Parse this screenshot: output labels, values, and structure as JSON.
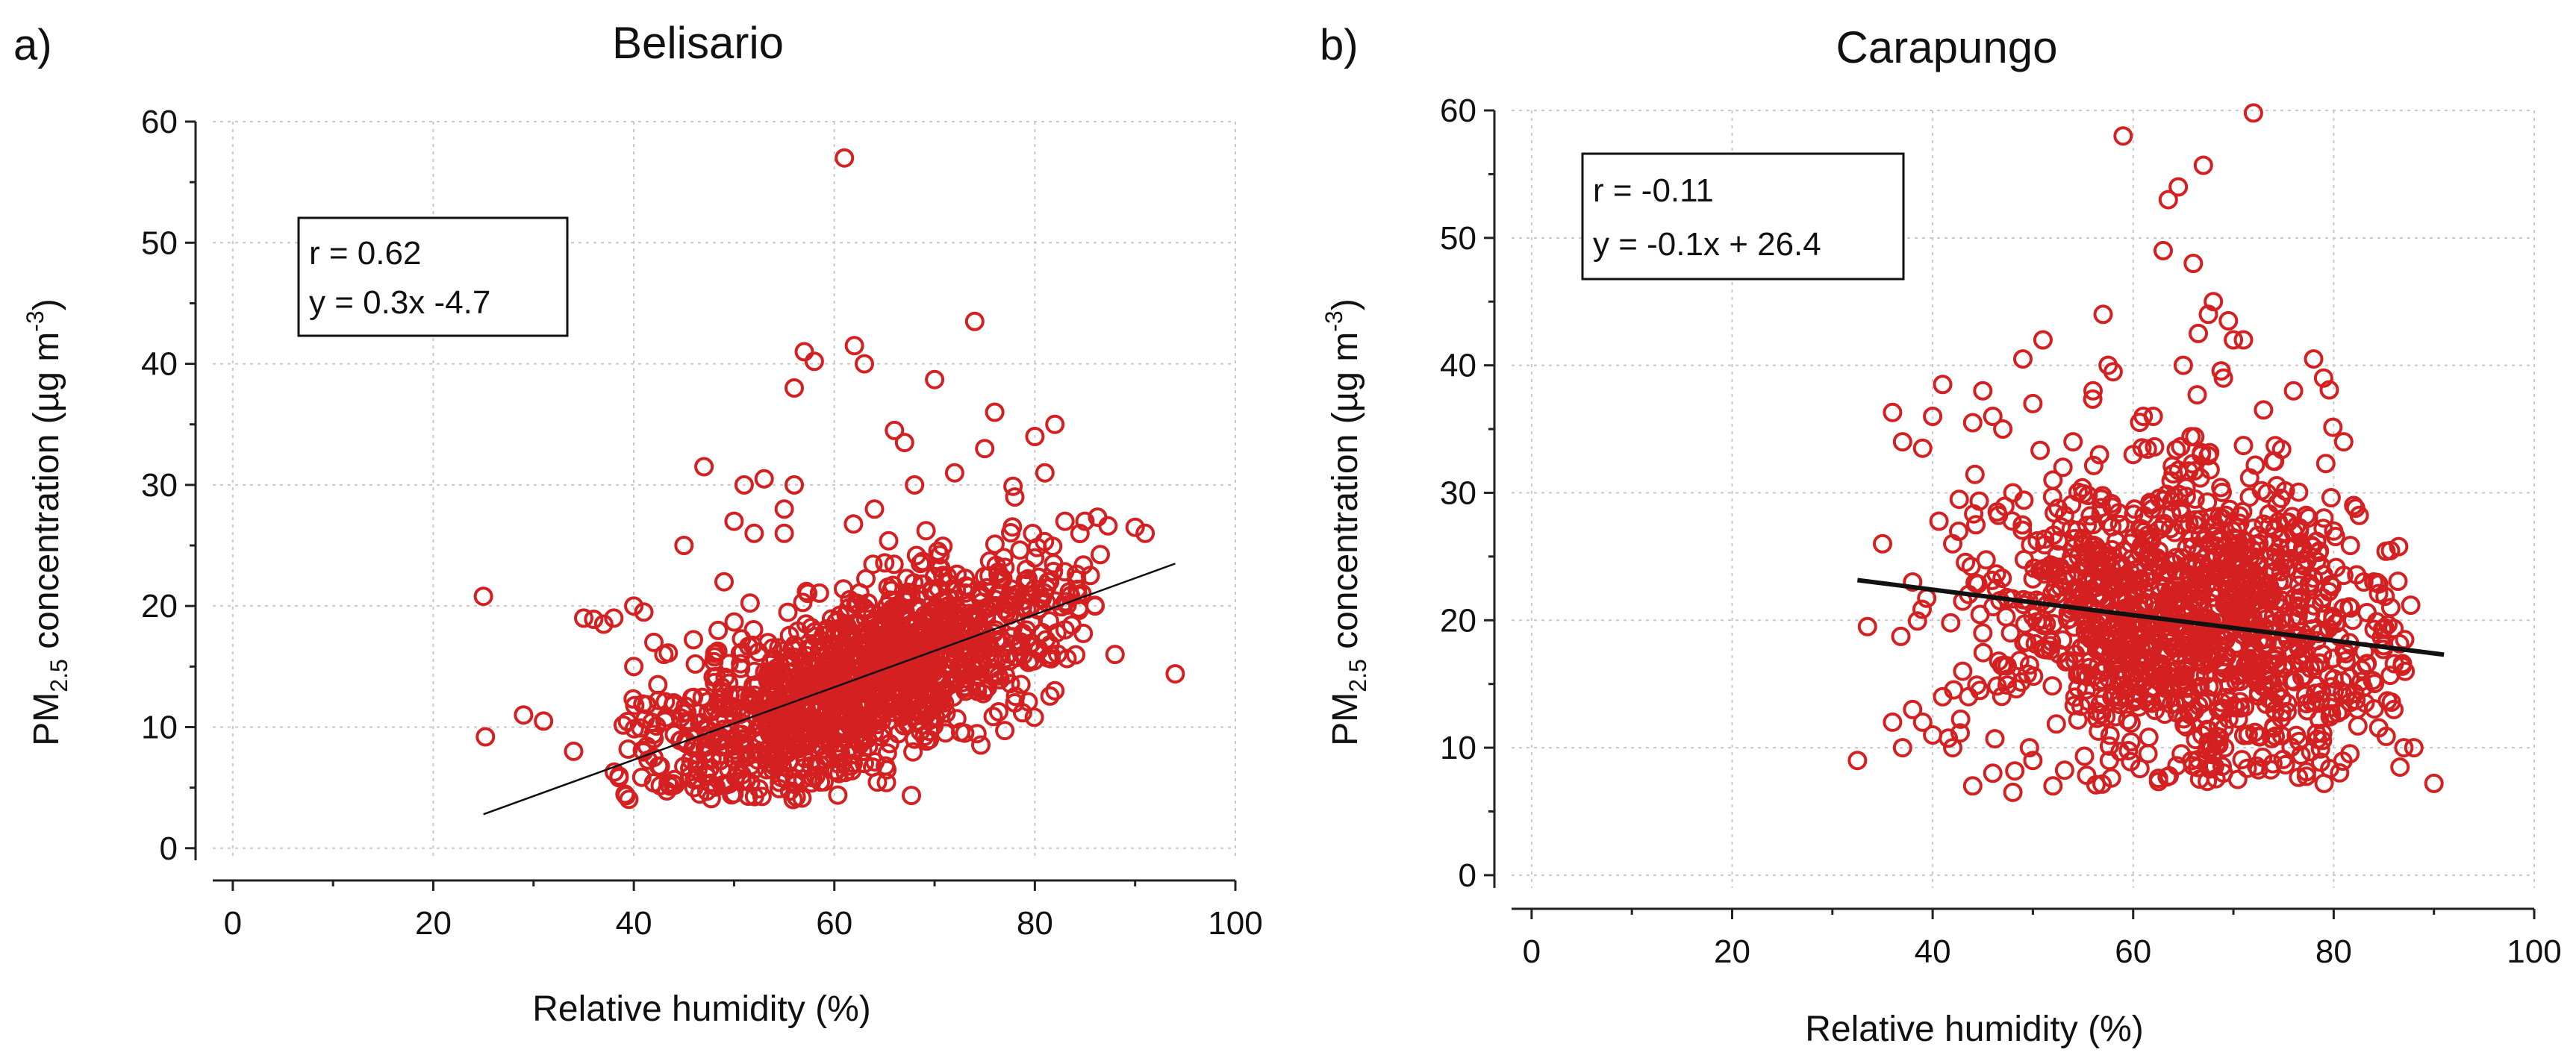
{
  "figure": {
    "background": "#ffffff",
    "point_color": "#d42020",
    "line_color": "#111111"
  },
  "chart_data": [
    {
      "type": "scatter",
      "panel_label": "a)",
      "title": "Belisario",
      "xlabel": "Relative humidity (%)",
      "ylabel": {
        "prefix": "PM",
        "subscript": "2.5",
        "middle": " concentration (µg m",
        "superscript": "-3",
        "suffix": ")"
      },
      "xlim": [
        -2,
        100
      ],
      "ylim": [
        -1,
        60
      ],
      "xticks": [
        0,
        20,
        40,
        60,
        80,
        100
      ],
      "yticks": [
        0,
        10,
        20,
        30,
        40,
        50,
        60
      ],
      "grid": true,
      "stats": {
        "r_text": "r = 0.62",
        "eq_text": "y = 0.3x -4.7"
      },
      "fit": {
        "slope": 0.3,
        "intercept": -4.7,
        "x_range": [
          25,
          94
        ],
        "width": 2.5
      },
      "outliers": [
        [
          25,
          20.8
        ],
        [
          25.2,
          9.2
        ],
        [
          29,
          11
        ],
        [
          31,
          10.5
        ],
        [
          34,
          8
        ],
        [
          35,
          19
        ],
        [
          36,
          18.9
        ],
        [
          37,
          18.5
        ],
        [
          38,
          19
        ],
        [
          40,
          20
        ],
        [
          40,
          15
        ],
        [
          41,
          19.5
        ],
        [
          42,
          17
        ],
        [
          43,
          16
        ],
        [
          44,
          12
        ],
        [
          45,
          25
        ],
        [
          47,
          31.5
        ],
        [
          49,
          22
        ],
        [
          50,
          27
        ],
        [
          51,
          30
        ],
        [
          52,
          26
        ],
        [
          53,
          30.5
        ],
        [
          55,
          28
        ],
        [
          56,
          30
        ],
        [
          56,
          38
        ],
        [
          57,
          41
        ],
        [
          58,
          40.2
        ],
        [
          61,
          57
        ],
        [
          62,
          41.5
        ],
        [
          63,
          40
        ],
        [
          64,
          28
        ],
        [
          66,
          34.5
        ],
        [
          67,
          33.5
        ],
        [
          68,
          30
        ],
        [
          70,
          38.7
        ],
        [
          72,
          31
        ],
        [
          74,
          43.5
        ],
        [
          75,
          33
        ],
        [
          76,
          36
        ],
        [
          78,
          29
        ],
        [
          80,
          34
        ],
        [
          81,
          31
        ],
        [
          82,
          35
        ],
        [
          83,
          27
        ],
        [
          85,
          27
        ],
        [
          86,
          20
        ],
        [
          88,
          16
        ],
        [
          90,
          26.5
        ],
        [
          91,
          26
        ],
        [
          94,
          14.4
        ],
        [
          73,
          9.5
        ],
        [
          68,
          9
        ],
        [
          60,
          8
        ],
        [
          50,
          4.5
        ],
        [
          46,
          5
        ],
        [
          55,
          26
        ],
        [
          63,
          7
        ],
        [
          70,
          12
        ],
        [
          78,
          12
        ],
        [
          82,
          13
        ]
      ],
      "cloud": {
        "n": 1300,
        "seed": 11,
        "x_center": 62,
        "x_spread": 10.5,
        "x_min": 38,
        "x_max": 88,
        "slope": 0.3,
        "intercept": -4.7,
        "resid": 3.6,
        "y_min": 4
      }
    },
    {
      "type": "scatter",
      "panel_label": "b)",
      "title": "Carapungo",
      "xlabel": "Relative humidity (%)",
      "ylabel": {
        "prefix": "PM",
        "subscript": "2.5",
        "middle": " concentration (µg m",
        "superscript": "-3",
        "suffix": ")"
      },
      "xlim": [
        -2,
        100
      ],
      "ylim": [
        -1,
        60
      ],
      "xticks": [
        0,
        20,
        40,
        60,
        80,
        100
      ],
      "yticks": [
        0,
        10,
        20,
        30,
        40,
        50,
        60
      ],
      "grid": true,
      "stats": {
        "r_text": "r = -0.11",
        "eq_text": "y = -0.1x + 26.4"
      },
      "fit": {
        "slope": -0.1,
        "intercept": 26.4,
        "x_range": [
          32.5,
          91
        ],
        "width": 6
      },
      "outliers": [
        [
          32.5,
          9
        ],
        [
          33.5,
          19.5
        ],
        [
          35,
          26
        ],
        [
          36,
          36.3
        ],
        [
          37,
          34
        ],
        [
          38,
          23
        ],
        [
          39,
          33.5
        ],
        [
          40,
          36
        ],
        [
          41,
          38.5
        ],
        [
          42,
          26
        ],
        [
          43,
          21.5
        ],
        [
          44,
          35.5
        ],
        [
          45,
          38
        ],
        [
          46,
          36
        ],
        [
          47,
          35
        ],
        [
          48,
          30
        ],
        [
          49,
          40.5
        ],
        [
          50,
          37
        ],
        [
          51,
          42
        ],
        [
          52,
          31
        ],
        [
          53,
          32
        ],
        [
          54,
          34
        ],
        [
          55,
          26
        ],
        [
          56,
          38
        ],
        [
          57,
          44
        ],
        [
          57.5,
          40
        ],
        [
          58,
          39.5
        ],
        [
          59,
          58
        ],
        [
          60,
          33
        ],
        [
          61,
          36
        ],
        [
          62,
          36
        ],
        [
          63,
          49
        ],
        [
          63.5,
          53
        ],
        [
          64.5,
          54
        ],
        [
          65,
          40
        ],
        [
          66,
          48
        ],
        [
          66.5,
          42.5
        ],
        [
          67,
          55.7
        ],
        [
          67.5,
          44
        ],
        [
          68,
          45
        ],
        [
          69,
          39
        ],
        [
          69.5,
          43.5
        ],
        [
          70,
          42
        ],
        [
          71,
          42
        ],
        [
          72,
          59.8
        ],
        [
          73,
          36.5
        ],
        [
          74,
          32.5
        ],
        [
          76,
          38
        ],
        [
          78,
          40.5
        ],
        [
          79,
          39
        ],
        [
          80,
          27
        ],
        [
          81,
          34
        ],
        [
          82,
          29
        ],
        [
          83,
          23
        ],
        [
          84,
          23
        ],
        [
          85,
          18
        ],
        [
          86,
          13
        ],
        [
          87,
          10
        ],
        [
          88,
          10
        ],
        [
          90,
          7.2
        ],
        [
          44,
          7
        ],
        [
          46,
          8
        ],
        [
          48,
          6.5
        ],
        [
          50,
          9
        ],
        [
          52,
          7
        ],
        [
          40,
          11
        ],
        [
          42,
          10
        ],
        [
          36,
          12
        ],
        [
          37,
          10
        ],
        [
          38,
          13
        ],
        [
          39,
          12
        ],
        [
          41,
          14
        ],
        [
          43,
          16
        ],
        [
          45,
          19
        ]
      ],
      "cloud": {
        "n": 1250,
        "seed": 29,
        "x_center": 66,
        "x_spread": 10,
        "x_min": 36,
        "x_max": 88,
        "slope": -0.1,
        "intercept": 26.4,
        "resid": 5.8,
        "y_min": 7
      }
    }
  ]
}
